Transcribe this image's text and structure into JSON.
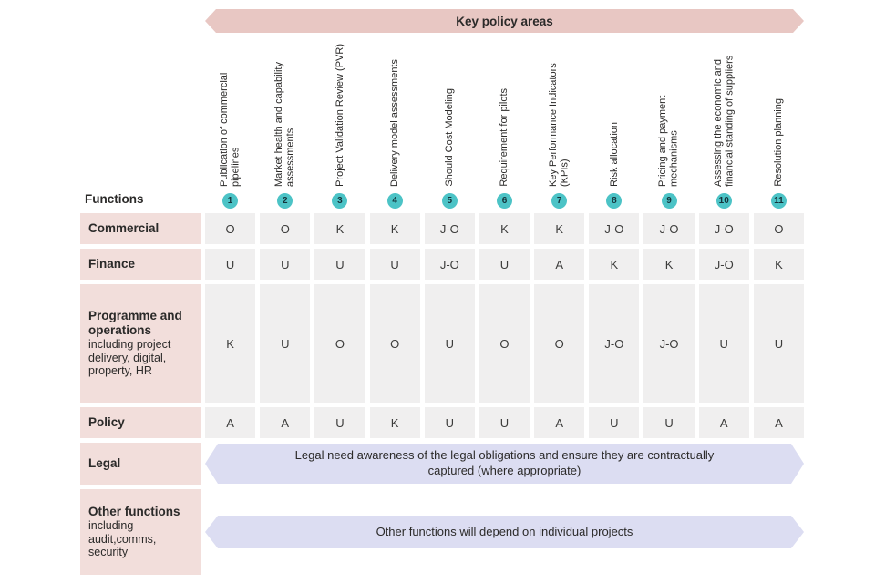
{
  "banner": {
    "title": "Key policy areas"
  },
  "functions_label": "Functions",
  "columns": [
    {
      "num": "1",
      "label": "Publication of commercial pipelines"
    },
    {
      "num": "2",
      "label": "Market health and capability assessments"
    },
    {
      "num": "3",
      "label": "Project Validation Review (PVR)"
    },
    {
      "num": "4",
      "label": "Delivery model assessments"
    },
    {
      "num": "5",
      "label": "Should Cost Modeling"
    },
    {
      "num": "6",
      "label": "Requirement for pilots"
    },
    {
      "num": "7",
      "label": "Key Performance Indicators (KPIs)"
    },
    {
      "num": "8",
      "label": "Risk allocation"
    },
    {
      "num": "9",
      "label": "Pricing and payment mechanisms"
    },
    {
      "num": "10",
      "label": "Assessing the economic and financial standing of suppliers"
    },
    {
      "num": "11",
      "label": "Resolution planning"
    }
  ],
  "rows": [
    {
      "label": "Commercial",
      "sub": "",
      "values": [
        "O",
        "O",
        "K",
        "K",
        "J-O",
        "K",
        "K",
        "J-O",
        "J-O",
        "J-O",
        "O"
      ]
    },
    {
      "label": "Finance",
      "sub": "",
      "values": [
        "U",
        "U",
        "U",
        "U",
        "J-O",
        "U",
        "A",
        "K",
        "K",
        "J-O",
        "K"
      ]
    },
    {
      "label": "Programme and operations",
      "sub": "including project delivery, digital, property, HR",
      "values": [
        "K",
        "U",
        "O",
        "O",
        "U",
        "O",
        "O",
        "J-O",
        "J-O",
        "U",
        "U"
      ]
    },
    {
      "label": "Policy",
      "sub": "",
      "values": [
        "A",
        "A",
        "U",
        "K",
        "U",
        "U",
        "A",
        "U",
        "U",
        "A",
        "A"
      ]
    }
  ],
  "banner_rows": [
    {
      "label": "Legal",
      "sub": "",
      "text": "Legal need awareness of the legal obligations and ensure they are contractually captured (where appropriate)"
    },
    {
      "label": "Other functions",
      "sub": "including audit,comms, security",
      "text": "Other functions will depend on individual projects"
    }
  ],
  "colors": {
    "banner_pink": "#e8c7c3",
    "label_pink": "#f2dedb",
    "lavender": "#dcddf2",
    "teal": "#4cc3c6",
    "cell_gray": "#f0efef"
  }
}
